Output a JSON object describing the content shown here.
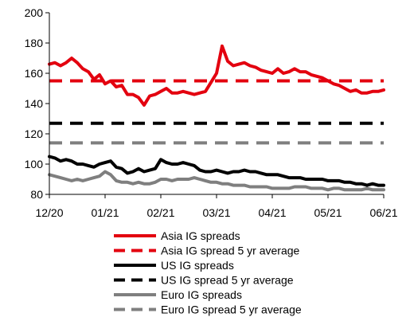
{
  "chart_data": {
    "type": "line",
    "title": "",
    "xlabel": "",
    "ylabel": "",
    "ylim": [
      80,
      200
    ],
    "yticks": [
      "80",
      "100",
      "120",
      "140",
      "160",
      "180",
      "200"
    ],
    "xticks": [
      "12/20",
      "01/21",
      "02/21",
      "03/21",
      "04/21",
      "05/21",
      "06/21"
    ],
    "grid": false,
    "legend_position": "bottom",
    "x": [
      "12/20",
      "",
      "",
      "",
      "",
      "",
      "",
      "",
      "",
      "",
      "01/21",
      "",
      "",
      "",
      "",
      "",
      "",
      "",
      "",
      "",
      "02/21",
      "",
      "",
      "",
      "",
      "",
      "",
      "",
      "",
      "",
      "03/21",
      "",
      "",
      "",
      "",
      "",
      "",
      "",
      "",
      "",
      "04/21",
      "",
      "",
      "",
      "",
      "",
      "",
      "",
      "",
      "",
      "05/21",
      "",
      "",
      "",
      "",
      "",
      "",
      "",
      "",
      "",
      "06/21"
    ],
    "series": [
      {
        "name": "Asia IG spreads",
        "color": "#e3000f",
        "dash": false,
        "values": [
          166,
          167,
          165,
          167,
          170,
          167,
          163,
          161,
          156,
          159,
          153,
          155,
          151,
          152,
          146,
          146,
          144,
          139,
          145,
          146,
          148,
          150,
          147,
          147,
          148,
          147,
          146,
          147,
          148,
          154,
          160,
          178,
          168,
          165,
          166,
          167,
          165,
          164,
          162,
          161,
          160,
          163,
          160,
          161,
          163,
          161,
          161,
          159,
          158,
          157,
          155,
          153,
          152,
          150,
          148,
          149,
          147,
          147,
          148,
          148,
          149
        ]
      },
      {
        "name": "Asia IG spread 5 yr average",
        "color": "#e3000f",
        "dash": true,
        "values": [
          155,
          155,
          155,
          155,
          155,
          155,
          155,
          155,
          155,
          155,
          155,
          155,
          155,
          155,
          155,
          155,
          155,
          155,
          155,
          155,
          155,
          155,
          155,
          155,
          155,
          155,
          155,
          155,
          155,
          155,
          155,
          155,
          155,
          155,
          155,
          155,
          155,
          155,
          155,
          155,
          155,
          155,
          155,
          155,
          155,
          155,
          155,
          155,
          155,
          155,
          155,
          155,
          155,
          155,
          155,
          155,
          155,
          155,
          155,
          155,
          155
        ]
      },
      {
        "name": "US IG spreads",
        "color": "#000000",
        "dash": false,
        "values": [
          105,
          104,
          102,
          103,
          102,
          100,
          100,
          99,
          98,
          100,
          101,
          102,
          98,
          97,
          94,
          95,
          97,
          95,
          96,
          97,
          103,
          101,
          100,
          100,
          101,
          100,
          99,
          96,
          95,
          95,
          96,
          95,
          94,
          95,
          95,
          96,
          95,
          95,
          94,
          93,
          93,
          93,
          92,
          91,
          91,
          91,
          90,
          90,
          90,
          90,
          89,
          89,
          89,
          88,
          88,
          87,
          87,
          86,
          87,
          86,
          86
        ]
      },
      {
        "name": "US IG spread 5 yr average",
        "color": "#000000",
        "dash": true,
        "values": [
          127,
          127,
          127,
          127,
          127,
          127,
          127,
          127,
          127,
          127,
          127,
          127,
          127,
          127,
          127,
          127,
          127,
          127,
          127,
          127,
          127,
          127,
          127,
          127,
          127,
          127,
          127,
          127,
          127,
          127,
          127,
          127,
          127,
          127,
          127,
          127,
          127,
          127,
          127,
          127,
          127,
          127,
          127,
          127,
          127,
          127,
          127,
          127,
          127,
          127,
          127,
          127,
          127,
          127,
          127,
          127,
          127,
          127,
          127,
          127,
          127
        ]
      },
      {
        "name": "Euro IG spreads",
        "color": "#7f7f7f",
        "dash": false,
        "values": [
          93,
          92,
          91,
          90,
          89,
          90,
          89,
          90,
          91,
          92,
          95,
          93,
          89,
          88,
          88,
          87,
          88,
          87,
          87,
          88,
          90,
          90,
          89,
          90,
          90,
          90,
          91,
          90,
          89,
          88,
          88,
          87,
          87,
          86,
          86,
          86,
          85,
          85,
          85,
          85,
          84,
          84,
          84,
          84,
          85,
          85,
          85,
          84,
          84,
          84,
          83,
          84,
          84,
          83,
          83,
          83,
          83,
          84,
          83,
          83,
          83
        ]
      },
      {
        "name": "Euro IG spread 5 yr average",
        "color": "#7f7f7f",
        "dash": true,
        "values": [
          114,
          114,
          114,
          114,
          114,
          114,
          114,
          114,
          114,
          114,
          114,
          114,
          114,
          114,
          114,
          114,
          114,
          114,
          114,
          114,
          114,
          114,
          114,
          114,
          114,
          114,
          114,
          114,
          114,
          114,
          114,
          114,
          114,
          114,
          114,
          114,
          114,
          114,
          114,
          114,
          114,
          114,
          114,
          114,
          114,
          114,
          114,
          114,
          114,
          114,
          114,
          114,
          114,
          114,
          114,
          114,
          114,
          114,
          114,
          114,
          114
        ]
      }
    ]
  }
}
